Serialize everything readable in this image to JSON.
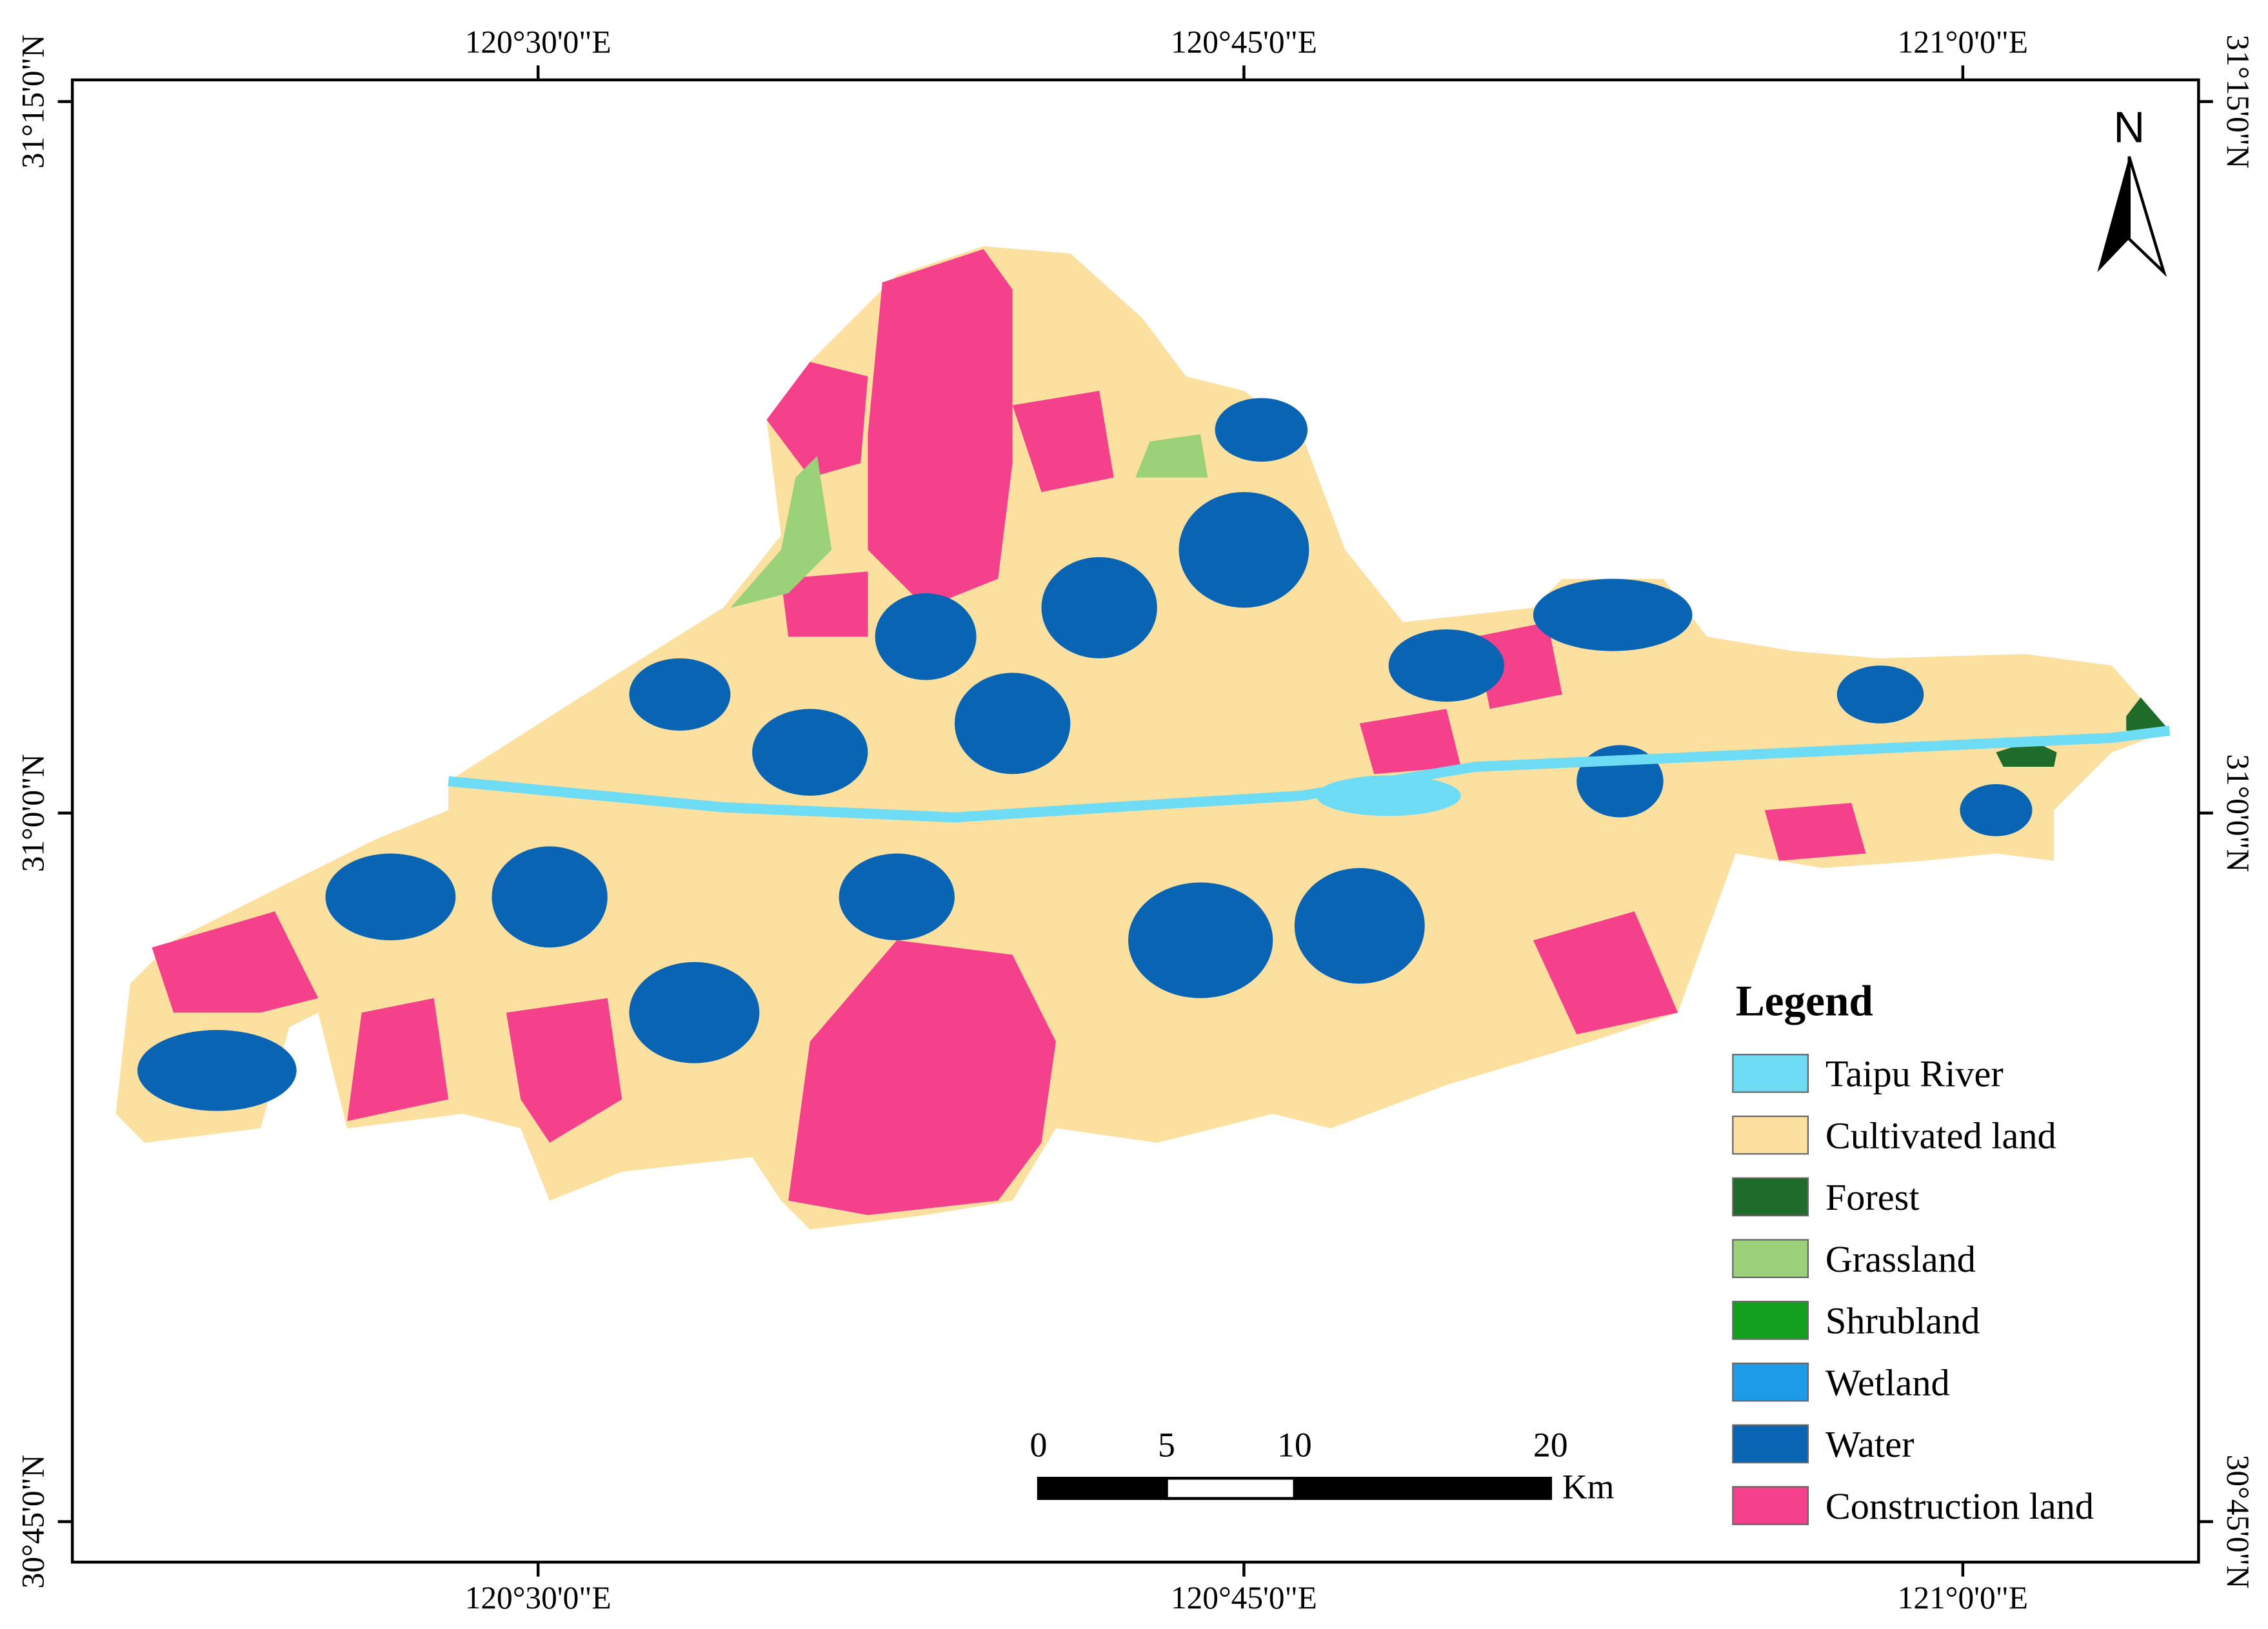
{
  "map": {
    "longitude_labels": [
      "120°30'0\"E",
      "120°45'0\"E",
      "121°0'0\"E"
    ],
    "latitude_labels": [
      "31°15'0\"N",
      "31°0'0\"N",
      "30°45'0\"N"
    ],
    "north_label": "N",
    "legend": {
      "title": "Legend",
      "items": [
        {
          "label": "Taipu River",
          "color": "#6fdcf5"
        },
        {
          "label": "Cultivated land",
          "color": "#fbe0a0"
        },
        {
          "label": "Forest",
          "color": "#1e6b2a"
        },
        {
          "label": "Grassland",
          "color": "#9bd178"
        },
        {
          "label": "Shrubland",
          "color": "#13a01e"
        },
        {
          "label": "Wetland",
          "color": "#1e9be8"
        },
        {
          "label": "Water",
          "color": "#0a64b4"
        },
        {
          "label": "Construction land",
          "color": "#f5408c"
        }
      ]
    },
    "scale_bar": {
      "ticks": [
        0,
        5,
        10,
        20
      ],
      "unit": "Km"
    }
  }
}
